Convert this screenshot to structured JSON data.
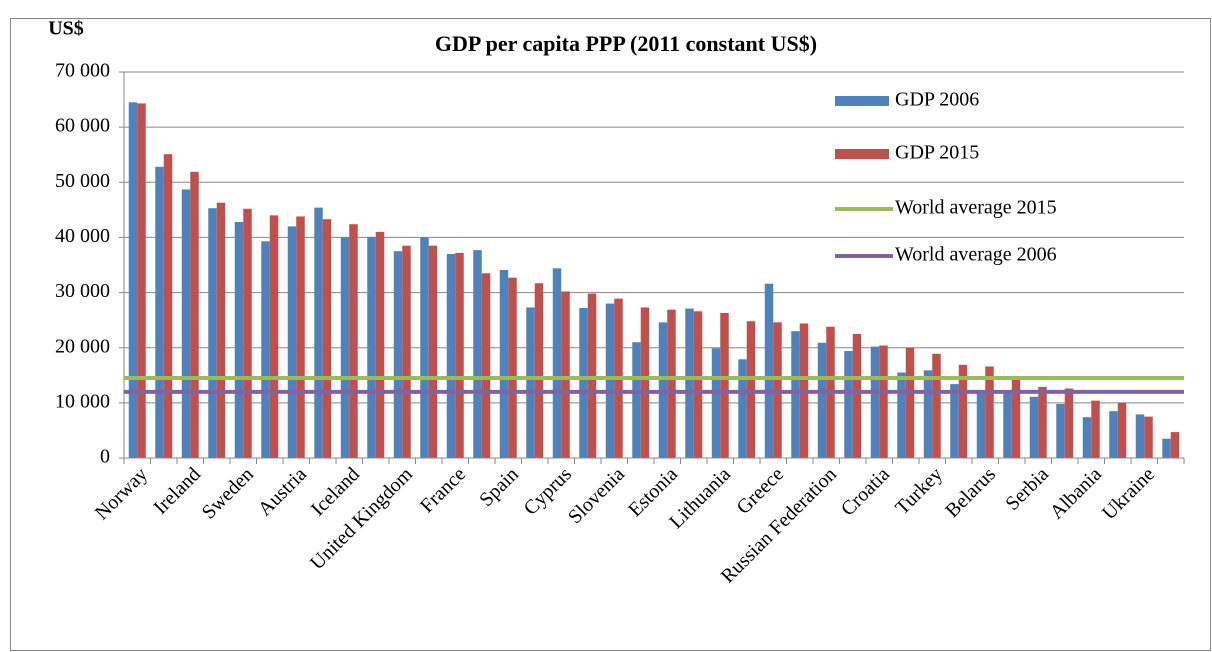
{
  "chart_data": {
    "type": "bar",
    "title": "GDP per capita PPP (2011 constant US$)",
    "y_axis_label": "US$",
    "categories": [
      "Norway",
      null,
      "Ireland",
      null,
      "Sweden",
      null,
      "Austria",
      null,
      "Iceland",
      null,
      "United Kingdom",
      null,
      "France",
      null,
      "Spain",
      null,
      "Cyprus",
      null,
      "Slovenia",
      null,
      "Estonia",
      null,
      "Lithuania",
      null,
      "Greece",
      null,
      "Russian Federation",
      null,
      "Croatia",
      null,
      "Turkey",
      null,
      "Belarus",
      null,
      "Serbia",
      null,
      "Albania",
      null,
      "Ukraine",
      null
    ],
    "series": [
      {
        "name": "GDP 2006",
        "type": "bar",
        "color": "#4f81bd",
        "values": [
          64500,
          52800,
          48700,
          45300,
          42800,
          39300,
          42000,
          45400,
          40000,
          40100,
          37500,
          40000,
          37000,
          37700,
          34100,
          27300,
          34400,
          27200,
          28000,
          21000,
          24600,
          27100,
          19900,
          17900,
          31600,
          23000,
          20900,
          19400,
          20200,
          15500,
          15900,
          13400,
          12300,
          12200,
          11100,
          9800,
          7400,
          8500,
          7900,
          3500
        ]
      },
      {
        "name": "GDP 2015",
        "type": "bar",
        "color": "#c0504d",
        "values": [
          64300,
          55100,
          51900,
          46300,
          45200,
          44000,
          43800,
          43300,
          42400,
          41000,
          38500,
          38500,
          37200,
          33500,
          32700,
          31700,
          30200,
          29800,
          28900,
          27300,
          26900,
          26600,
          26300,
          24800,
          24600,
          24400,
          23800,
          22500,
          20400,
          20000,
          18900,
          16900,
          16600,
          14800,
          12900,
          12600,
          10400,
          10000,
          7500,
          4700
        ]
      },
      {
        "name": "World average 2015",
        "type": "hline",
        "color": "#9bbb59",
        "value": 14500
      },
      {
        "name": "World average 2006",
        "type": "hline",
        "color": "#8064a2",
        "value": 12000
      }
    ],
    "ylim": [
      0,
      70000
    ],
    "yticks": [
      0,
      {
        "value": 10000,
        "label": "10 000"
      },
      {
        "value": 20000,
        "label": "20 000"
      },
      {
        "value": 30000,
        "label": "30 000"
      },
      {
        "value": 40000,
        "label": "40 000"
      },
      {
        "value": 50000,
        "label": "50 000"
      },
      {
        "value": 60000,
        "label": "60 000"
      },
      {
        "value": 70000,
        "label": "70 000"
      }
    ],
    "grid": true,
    "legend": "upper right"
  }
}
